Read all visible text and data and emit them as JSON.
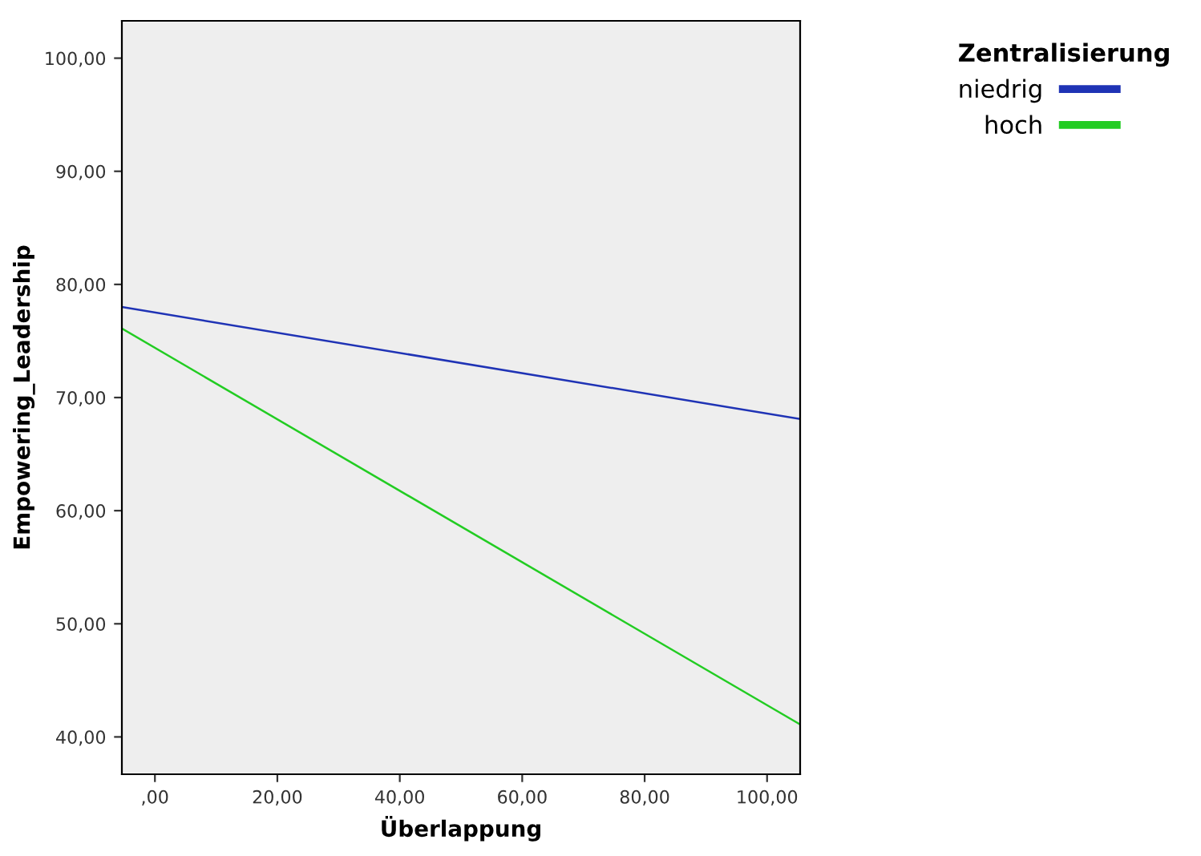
{
  "chart_data": {
    "type": "line",
    "xlabel": "Überlappung",
    "ylabel": "Empowering_Leadership",
    "legend_title": "Zentralisierung",
    "legend": "top right",
    "grid": false,
    "marker": "none",
    "line_style": "solid",
    "x": [
      -5.4,
      105.4
    ],
    "series": [
      {
        "name": "niedrig",
        "color": "#1f33b5",
        "values": [
          78.0,
          68.1
        ]
      },
      {
        "name": "hoch",
        "color": "#22cc22",
        "values": [
          76.1,
          41.1
        ]
      }
    ],
    "xlim": [
      -5.4,
      105.4
    ],
    "ylim": [
      36.7,
      103.3
    ],
    "xticks": [
      {
        "value": 0,
        "label": ",00"
      },
      {
        "value": 20,
        "label": "20,00"
      },
      {
        "value": 40,
        "label": "40,00"
      },
      {
        "value": 60,
        "label": "60,00"
      },
      {
        "value": 80,
        "label": "80,00"
      },
      {
        "value": 100,
        "label": "100,00"
      }
    ],
    "yticks": [
      {
        "value": 40,
        "label": "40,00"
      },
      {
        "value": 50,
        "label": "50,00"
      },
      {
        "value": 60,
        "label": "60,00"
      },
      {
        "value": 70,
        "label": "70,00"
      },
      {
        "value": 80,
        "label": "80,00"
      },
      {
        "value": 90,
        "label": "90,00"
      },
      {
        "value": 100,
        "label": "100,00"
      }
    ]
  }
}
